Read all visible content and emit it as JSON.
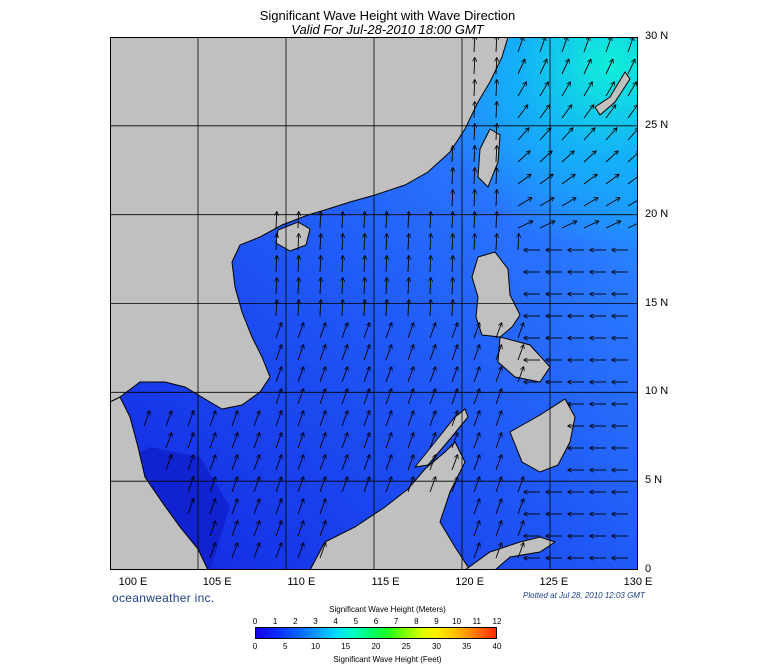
{
  "title": "Significant Wave Height with Wave Direction",
  "subtitle": "Valid For Jul-28-2010 18:00 GMT",
  "latitude_labels": [
    "30 N",
    "25 N",
    "20 N",
    "15 N",
    "10 N",
    "5 N",
    "0"
  ],
  "longitude_labels": [
    "100 E",
    "105 E",
    "110 E",
    "115 E",
    "120 E",
    "125 E",
    "130 E"
  ],
  "brand": "oceanweather inc.",
  "plotted": "Plotted at Jul 28, 2010 12:03 GMT",
  "colorbar": {
    "meters_title": "Significant Wave Height (Meters)",
    "feet_title": "Significant Wave Height (Feet)",
    "meters_ticks": [
      "0",
      "1",
      "2",
      "3",
      "4",
      "5",
      "6",
      "7",
      "8",
      "9",
      "10",
      "11",
      "12"
    ],
    "feet_ticks": [
      "0",
      "5",
      "10",
      "15",
      "20",
      "25",
      "30",
      "35",
      "40"
    ]
  },
  "colors": {
    "land": "#c0c0c0",
    "sea_dark": "#1430e6",
    "sea_light": "#2f7bff",
    "sea_high": "#18d0f0",
    "grid": "#000000"
  }
}
